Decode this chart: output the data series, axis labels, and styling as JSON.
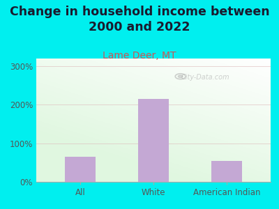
{
  "title": "Change in household income between\n2000 and 2022",
  "subtitle": "Lame Deer, MT",
  "categories": [
    "All",
    "White",
    "American Indian"
  ],
  "values": [
    65,
    215,
    55
  ],
  "bar_color": "#c4a8d4",
  "outer_bg": "#00efef",
  "title_fontsize": 12.5,
  "subtitle_fontsize": 10,
  "subtitle_color": "#cc5555",
  "title_color": "#1a1a2e",
  "yticks": [
    0,
    100,
    200,
    300
  ],
  "ytick_labels": [
    "0%",
    "100%",
    "200%",
    "300%"
  ],
  "ylim": [
    0,
    320
  ],
  "watermark": "City-Data.com",
  "tick_label_color": "#555555"
}
